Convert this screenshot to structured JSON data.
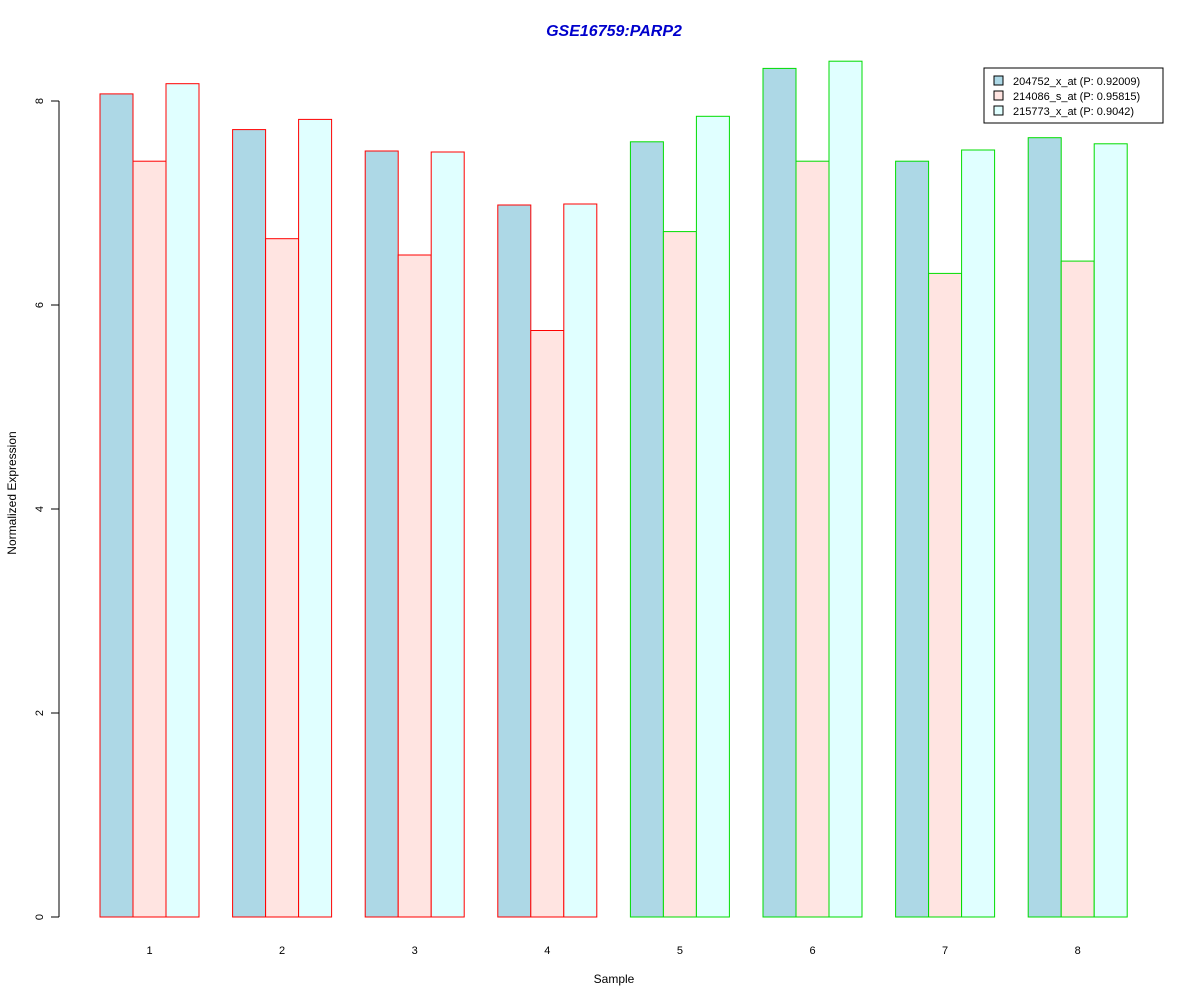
{
  "chart_data": {
    "type": "bar",
    "title": "GSE16759:PARP2",
    "title_color": "#0000CC",
    "xlabel": "Sample",
    "ylabel": "Normalized Expression",
    "categories": [
      "1",
      "2",
      "3",
      "4",
      "5",
      "6",
      "7",
      "8"
    ],
    "ylim": [
      0,
      8.4
    ],
    "yticks": [
      0,
      2,
      4,
      6,
      8
    ],
    "grid": false,
    "legend_position": "top-right",
    "series": [
      {
        "name": "204752_x_at (P: 0.92009)",
        "fill": "#ADD8E6",
        "values": [
          8.07,
          7.72,
          7.51,
          6.98,
          7.6,
          8.32,
          7.41,
          7.64
        ]
      },
      {
        "name": "214086_s_at (P: 0.95815)",
        "fill": "#FFE4E1",
        "values": [
          7.41,
          6.65,
          6.49,
          5.75,
          6.72,
          7.41,
          6.31,
          6.43
        ]
      },
      {
        "name": "215773_x_at (P: 0.9042)",
        "fill": "#E0FFFF",
        "values": [
          8.17,
          7.82,
          7.5,
          6.99,
          7.85,
          8.39,
          7.52,
          7.58
        ]
      }
    ],
    "group_border_colors": [
      "#FF0000",
      "#FF0000",
      "#FF0000",
      "#FF0000",
      "#00DD00",
      "#00DD00",
      "#00DD00",
      "#00DD00"
    ]
  }
}
